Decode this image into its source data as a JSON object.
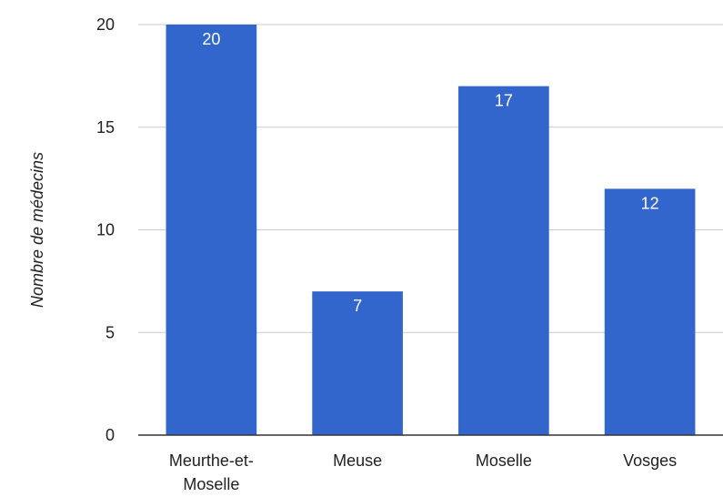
{
  "chart_data": {
    "type": "bar",
    "categories": [
      [
        "Meurthe-et-",
        "Moselle"
      ],
      [
        "Meuse"
      ],
      [
        "Moselle"
      ],
      [
        "Vosges"
      ]
    ],
    "values": [
      20,
      7,
      17,
      12
    ],
    "data_labels": [
      "20",
      "7",
      "17",
      "12"
    ],
    "ylabel": "Nombre de médecins",
    "xlabel": "",
    "ylim": [
      0,
      20
    ],
    "yticks": [
      0,
      5,
      10,
      15,
      20
    ],
    "grid": true,
    "legend": "none",
    "bar_color": "#3366cc",
    "grid_color": "#cccccc",
    "axis_color": "#333333"
  }
}
